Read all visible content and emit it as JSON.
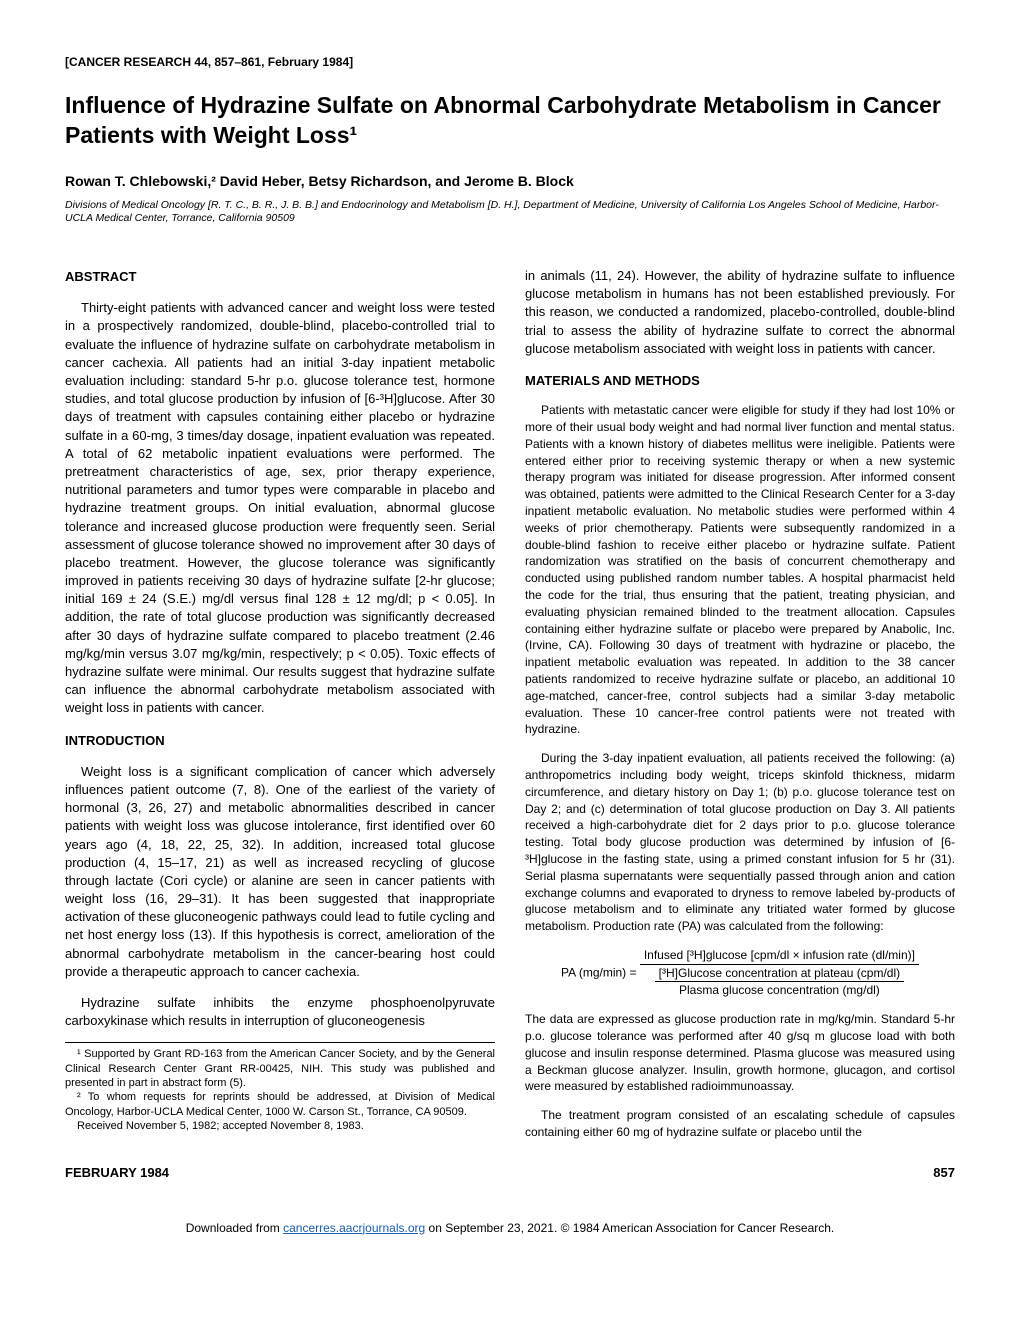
{
  "journal_ref": "[CANCER RESEARCH 44, 857–861, February 1984]",
  "title": "Influence of Hydrazine Sulfate on Abnormal Carbohydrate Metabolism in Cancer Patients with Weight Loss¹",
  "authors": "Rowan T. Chlebowski,² David Heber, Betsy Richardson, and Jerome B. Block",
  "affiliation": "Divisions of Medical Oncology [R. T. C., B. R., J. B. B.] and Endocrinology and Metabolism [D. H.], Department of Medicine, University of California Los Angeles School of Medicine, Harbor-UCLA Medical Center, Torrance, California 90509",
  "abstract_head": "ABSTRACT",
  "abstract_p1": "Thirty-eight patients with advanced cancer and weight loss were tested in a prospectively randomized, double-blind, placebo-controlled trial to evaluate the influence of hydrazine sulfate on carbohydrate metabolism in cancer cachexia. All patients had an initial 3-day inpatient metabolic evaluation including: standard 5-hr p.o. glucose tolerance test, hormone studies, and total glucose production by infusion of [6-³H]glucose. After 30 days of treatment with capsules containing either placebo or hydrazine sulfate in a 60-mg, 3 times/day dosage, inpatient evaluation was repeated. A total of 62 metabolic inpatient evaluations were performed. The pretreatment characteristics of age, sex, prior therapy experience, nutritional parameters and tumor types were comparable in placebo and hydrazine treatment groups. On initial evaluation, abnormal glucose tolerance and increased glucose production were frequently seen. Serial assessment of glucose tolerance showed no improvement after 30 days of placebo treatment. However, the glucose tolerance was significantly improved in patients receiving 30 days of hydrazine sulfate [2-hr glucose; initial 169 ± 24 (S.E.) mg/dl versus final 128 ± 12 mg/dl; p < 0.05]. In addition, the rate of total glucose production was significantly decreased after 30 days of hydrazine sulfate compared to placebo treatment (2.46 mg/kg/min versus 3.07 mg/kg/min, respectively; p < 0.05). Toxic effects of hydrazine sulfate were minimal. Our results suggest that hydrazine sulfate can influence the abnormal carbohydrate metabolism associated with weight loss in patients with cancer.",
  "intro_head": "INTRODUCTION",
  "intro_p1": "Weight loss is a significant complication of cancer which adversely influences patient outcome (7, 8). One of the earliest of the variety of hormonal (3, 26, 27) and metabolic abnormalities described in cancer patients with weight loss was glucose intolerance, first identified over 60 years ago (4, 18, 22, 25, 32). In addition, increased total glucose production (4, 15–17, 21) as well as increased recycling of glucose through lactate (Cori cycle) or alanine are seen in cancer patients with weight loss (16, 29–31). It has been suggested that inappropriate activation of these gluconeogenic pathways could lead to futile cycling and net host energy loss (13). If this hypothesis is correct, amelioration of the abnormal carbohydrate metabolism in the cancer-bearing host could provide a therapeutic approach to cancer cachexia.",
  "intro_p2": "Hydrazine sulfate inhibits the enzyme phosphoenolpyruvate carboxykinase which results in interruption of gluconeogenesis",
  "footnote1": "¹ Supported by Grant RD-163 from the American Cancer Society, and by the General Clinical Research Center Grant RR-00425, NIH. This study was published and presented in part in abstract form (5).",
  "footnote2": "² To whom requests for reprints should be addressed, at Division of Medical Oncology, Harbor-UCLA Medical Center, 1000 W. Carson St., Torrance, CA 90509.",
  "footnote3": "Received November 5, 1982; accepted November 8, 1983.",
  "col2_p1": "in animals (11, 24). However, the ability of hydrazine sulfate to influence glucose metabolism in humans has not been established previously. For this reason, we conducted a randomized, placebo-controlled, double-blind trial to assess the ability of hydrazine sulfate to correct the abnormal glucose metabolism associated with weight loss in patients with cancer.",
  "methods_head": "MATERIALS AND METHODS",
  "methods_p1": "Patients with metastatic cancer were eligible for study if they had lost 10% or more of their usual body weight and had normal liver function and mental status. Patients with a known history of diabetes mellitus were ineligible. Patients were entered either prior to receiving systemic therapy or when a new systemic therapy program was initiated for disease progression. After informed consent was obtained, patients were admitted to the Clinical Research Center for a 3-day inpatient metabolic evaluation. No metabolic studies were performed within 4 weeks of prior chemotherapy. Patients were subsequently randomized in a double-blind fashion to receive either placebo or hydrazine sulfate. Patient randomization was stratified on the basis of concurrent chemotherapy and conducted using published random number tables. A hospital pharmacist held the code for the trial, thus ensuring that the patient, treating physician, and evaluating physician remained blinded to the treatment allocation. Capsules containing either hydrazine sulfate or placebo were prepared by Anabolic, Inc. (Irvine, CA). Following 30 days of treatment with hydrazine or placebo, the inpatient metabolic evaluation was repeated. In addition to the 38 cancer patients randomized to receive hydrazine sulfate or placebo, an additional 10 age-matched, cancer-free, control subjects had a similar 3-day metabolic evaluation. These 10 cancer-free control patients were not treated with hydrazine.",
  "methods_p2": "During the 3-day inpatient evaluation, all patients received the following: (a) anthropometrics including body weight, triceps skinfold thickness, midarm circumference, and dietary history on Day 1; (b) p.o. glucose tolerance test on Day 2; and (c) determination of total glucose production on Day 3. All patients received a high-carbohydrate diet for 2 days prior to p.o. glucose tolerance testing. Total body glucose production was determined by infusion of [6-³H]glucose in the fasting state, using a primed constant infusion for 5 hr (31). Serial plasma supernatants were sequentially passed through anion and cation exchange columns and evaporated to dryness to remove labeled by-products of glucose metabolism and to eliminate any tritiated water formed by glucose metabolism. Production rate (PA) was calculated from the following:",
  "formula_lhs": "PA (mg/min) =",
  "formula_num": "Infused [³H]glucose [cpm/dl × infusion rate (dl/min)]",
  "formula_den1": "[³H]Glucose concentration at plateau (cpm/dl)",
  "formula_den2": "Plasma glucose concentration (mg/dl)",
  "methods_p3": "The data are expressed as glucose production rate in mg/kg/min. Standard 5-hr p.o. glucose tolerance was performed after 40 g/sq m glucose load with both glucose and insulin response determined. Plasma glucose was measured using a Beckman glucose analyzer. Insulin, growth hormone, glucagon, and cortisol were measured by established radioimmunoassay.",
  "methods_p4": "The treatment program consisted of an escalating schedule of capsules containing either 60 mg of hydrazine sulfate or placebo until the",
  "footer_date": "FEBRUARY 1984",
  "footer_page": "857",
  "download_prefix": "Downloaded from ",
  "download_link": "cancerres.aacrjournals.org",
  "download_suffix": " on September 23, 2021. © 1984 American Association for Cancer Research."
}
